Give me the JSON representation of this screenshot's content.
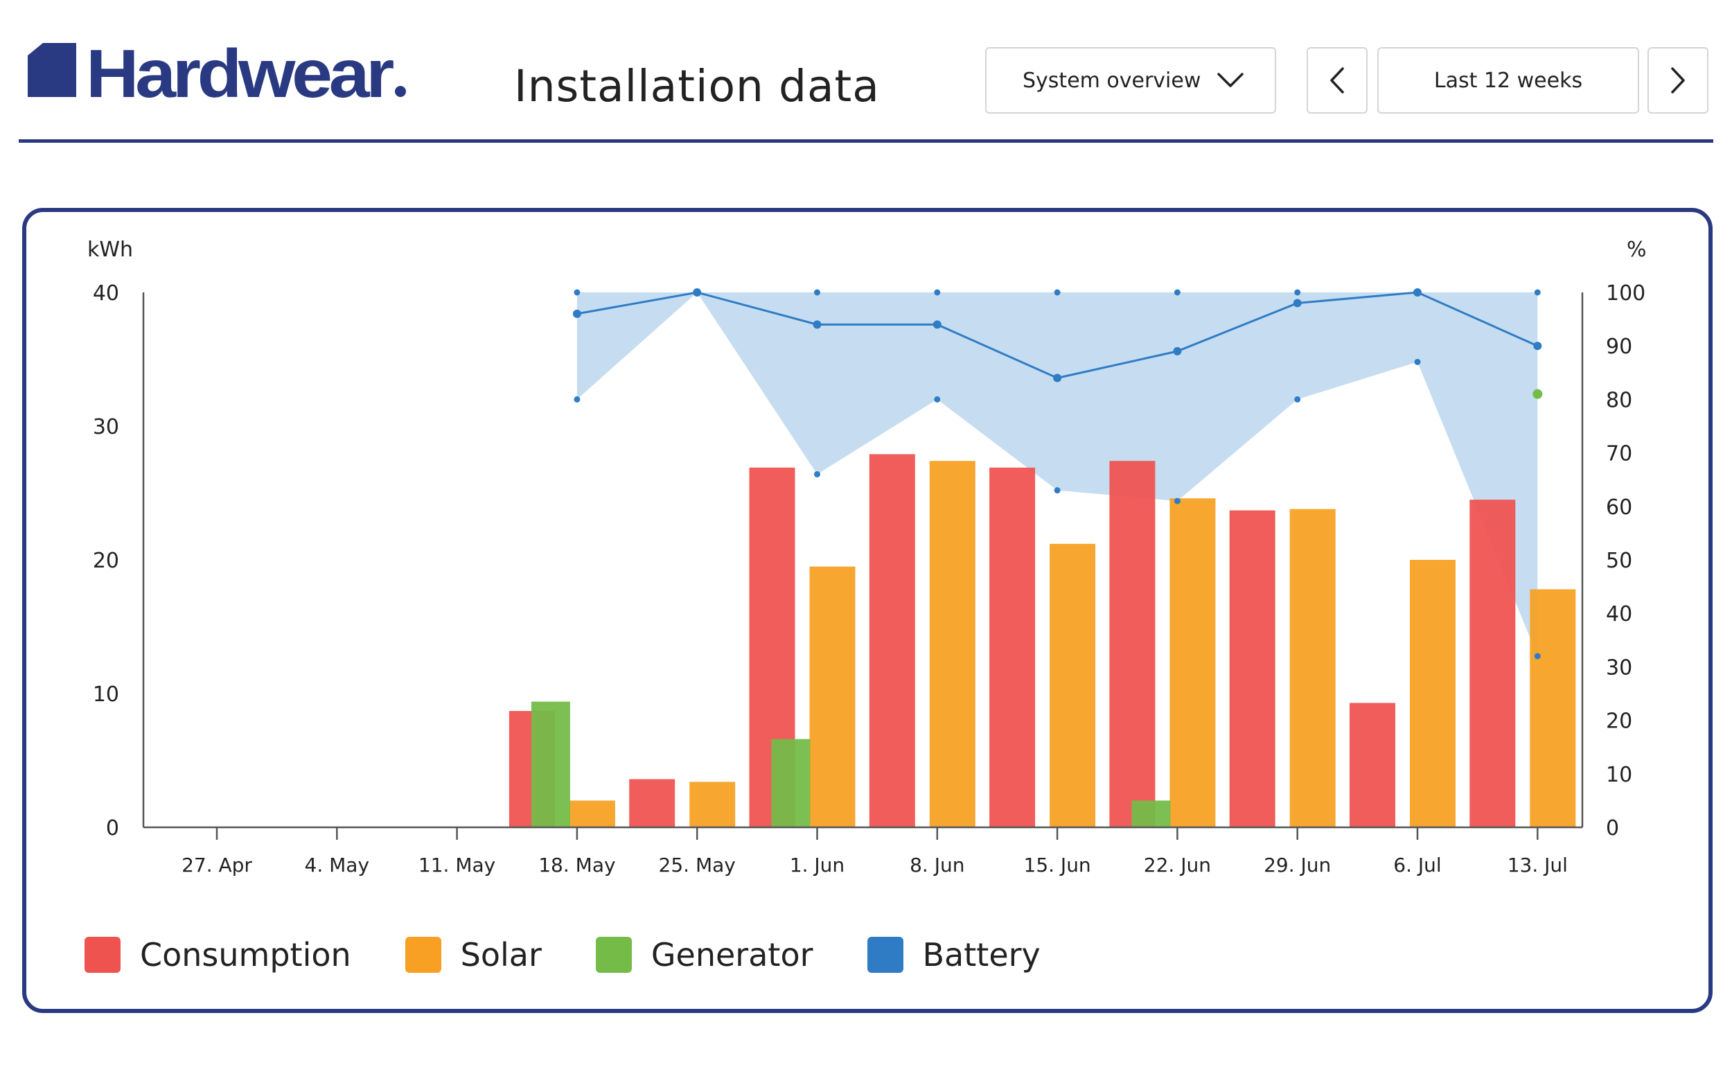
{
  "header": {
    "brand": "Hardwear",
    "title": "Installation data",
    "view_select": {
      "value": "System overview"
    },
    "range_label": "Last 12 weeks"
  },
  "chart_data": {
    "type": "bar",
    "left_axis": {
      "label": "kWh",
      "ylim": [
        0,
        40
      ],
      "ticks": [
        0,
        10,
        20,
        30,
        40
      ]
    },
    "right_axis": {
      "label": "%",
      "ylim": [
        0,
        100
      ],
      "ticks": [
        0,
        10,
        20,
        30,
        40,
        50,
        60,
        70,
        80,
        90,
        100
      ]
    },
    "categories": [
      "27. Apr",
      "4. May",
      "11. May",
      "18. May",
      "25. May",
      "1. Jun",
      "8. Jun",
      "15. Jun",
      "22. Jun",
      "29. Jun",
      "6. Jul",
      "13. Jul"
    ],
    "series": [
      {
        "name": "Consumption",
        "axis": "left",
        "color": "#ef5350",
        "values": [
          0,
          0,
          0,
          8.7,
          3.6,
          26.9,
          27.9,
          26.9,
          27.4,
          23.7,
          9.3,
          24.5
        ]
      },
      {
        "name": "Solar",
        "axis": "left",
        "color": "#f7a023",
        "values": [
          0,
          0,
          0,
          2.0,
          3.4,
          19.5,
          27.4,
          21.2,
          24.6,
          23.8,
          20.0,
          17.8
        ]
      },
      {
        "name": "Generator",
        "axis": "left",
        "color": "#74bb48",
        "values": [
          0,
          0,
          0,
          9.4,
          0,
          6.6,
          0,
          0,
          2.0,
          0,
          0,
          0
        ]
      },
      {
        "name": "Battery",
        "axis": "right",
        "color": "#2f7cc5",
        "range_color": "#bcd7ef",
        "points": [
          {
            "category": "18. May",
            "value": 96,
            "min": 80,
            "max": 100
          },
          {
            "category": "25. May",
            "value": 100,
            "min": 100,
            "max": 100
          },
          {
            "category": "1. Jun",
            "value": 94,
            "min": 66,
            "max": 100
          },
          {
            "category": "8. Jun",
            "value": 94,
            "min": 80,
            "max": 100
          },
          {
            "category": "15. Jun",
            "value": 84,
            "min": 63,
            "max": 100
          },
          {
            "category": "22. Jun",
            "value": 89,
            "min": 61,
            "max": 100
          },
          {
            "category": "29. Jun",
            "value": 98,
            "min": 80,
            "max": 100
          },
          {
            "category": "6. Jul",
            "value": 100,
            "min": 87,
            "max": 100
          },
          {
            "category": "13. Jul",
            "value": 90,
            "min": 32,
            "max": 100
          }
        ],
        "generator_marker": {
          "category": "13. Jul",
          "value": 81,
          "color": "#74bb48"
        }
      }
    ],
    "legend_position": "bottom-left",
    "grid": false
  }
}
